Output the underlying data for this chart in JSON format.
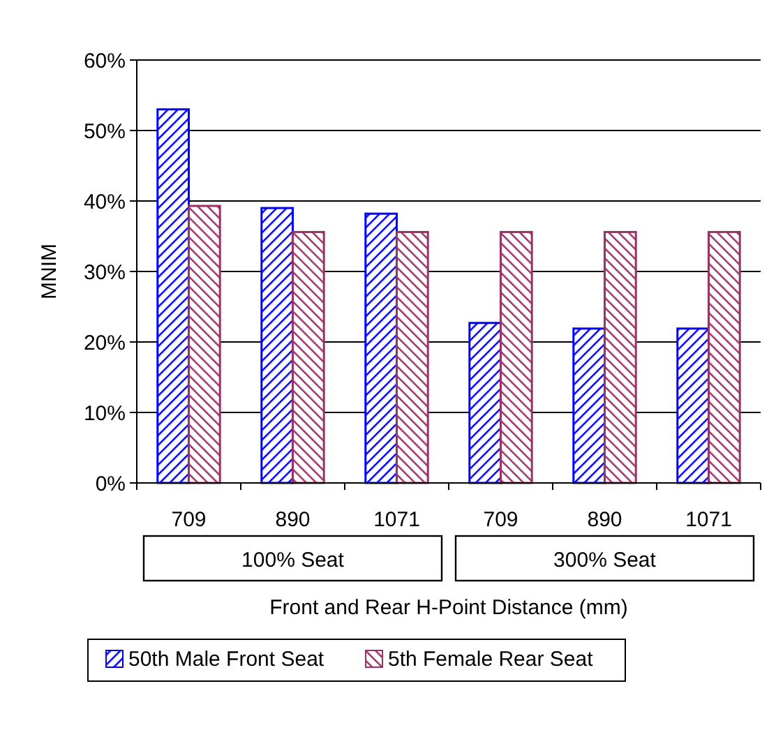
{
  "chart_data": {
    "type": "bar",
    "xlabel": "Front and Rear H-Point Distance (mm)",
    "ylabel": "MNIM",
    "categories": [
      "709",
      "890",
      "1071",
      "709",
      "890",
      "1071"
    ],
    "series": [
      {
        "name": "50th Male Front Seat",
        "color": "#0000ff",
        "values": [
          53,
          39,
          38.2,
          22.7,
          21.9,
          21.9
        ]
      },
      {
        "name": "5th Female Rear Seat",
        "color": "#993366",
        "values": [
          39.3,
          35.6,
          35.6,
          35.6,
          35.6,
          35.6
        ]
      }
    ],
    "ylim": [
      0,
      60
    ],
    "yticks": [
      {
        "value": 0,
        "label": "0%"
      },
      {
        "value": 10,
        "label": "10%"
      },
      {
        "value": 20,
        "label": "20%"
      },
      {
        "value": 30,
        "label": "30%"
      },
      {
        "value": 40,
        "label": "40%"
      },
      {
        "value": 50,
        "label": "50%"
      },
      {
        "value": 60,
        "label": "60%"
      }
    ],
    "grid": "y",
    "legend": "bottom",
    "annotations": [
      "100% Seat",
      "300% Seat"
    ]
  }
}
